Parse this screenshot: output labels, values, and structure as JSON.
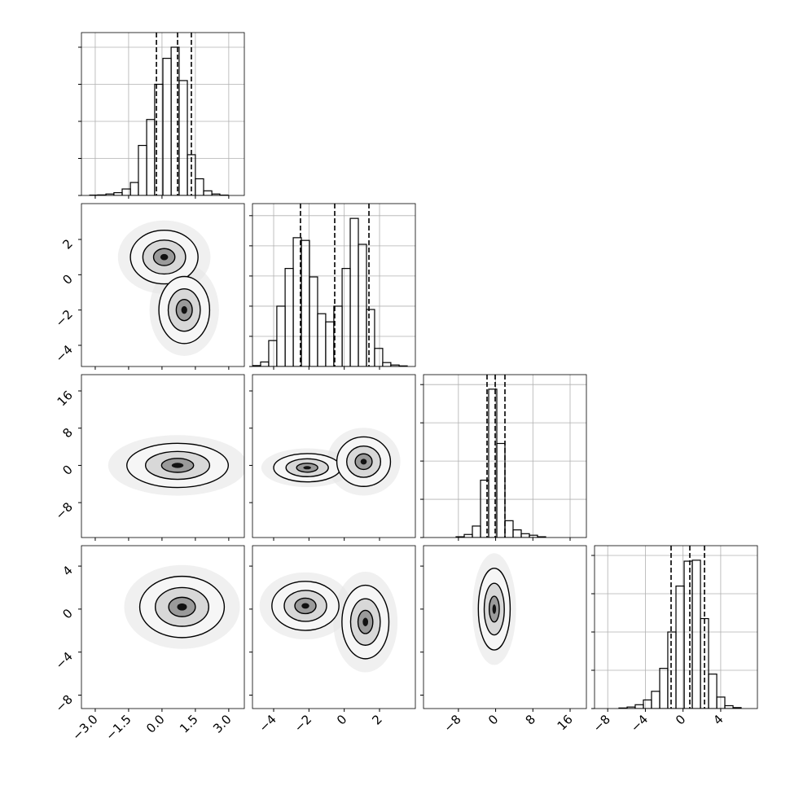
{
  "chart_data": [
    {
      "type": "histogram",
      "xlim": [
        -3.62,
        3.7
      ],
      "ylim": [
        0,
        879
      ],
      "xticks": [
        -3,
        -1.5,
        0,
        1.5,
        3
      ],
      "yticks": [
        0,
        200,
        400,
        600,
        800
      ],
      "grid": true,
      "bins": [
        -3.62,
        -3.25,
        -2.89,
        -2.52,
        -2.16,
        -1.79,
        -1.42,
        -1.06,
        -0.69,
        -0.33,
        0.04,
        0.41,
        0.77,
        1.14,
        1.5,
        1.87,
        2.24,
        2.6,
        2.97,
        3.33,
        3.7
      ],
      "counts": [
        0,
        2,
        3,
        8,
        15,
        35,
        70,
        270,
        410,
        600,
        740,
        800,
        620,
        220,
        90,
        25,
        8,
        2,
        0,
        0
      ],
      "quantiles": [
        -0.25,
        0.7,
        1.32
      ]
    },
    {
      "type": "contour",
      "xlim": [
        -3.62,
        3.7
      ],
      "ylim": [
        -5.2,
        4.03
      ],
      "xticks": [
        -3,
        -1.5,
        0,
        1.5,
        3
      ],
      "yticks": [
        {
          "value": -4,
          "label": "−4"
        },
        {
          "value": -2,
          "label": "−2"
        },
        0,
        2
      ],
      "modes": [
        {
          "x": 0.1,
          "y": 1.0,
          "sx": 0.8,
          "sy": 0.8
        },
        {
          "x": 1.0,
          "y": -2.0,
          "sx": 0.6,
          "sy": 1.0
        }
      ]
    },
    {
      "type": "histogram",
      "xlim": [
        -5.2,
        4.03
      ],
      "ylim": [
        0,
        540
      ],
      "xticks": [
        -4,
        -2,
        0,
        2
      ],
      "yticks": [
        0,
        100,
        200,
        300,
        400,
        500
      ],
      "grid": true,
      "bins": [
        -5.2,
        -4.74,
        -4.28,
        -3.82,
        -3.35,
        -2.89,
        -2.43,
        -1.97,
        -1.51,
        -1.05,
        -0.59,
        -0.12,
        0.34,
        0.8,
        1.26,
        1.72,
        2.18,
        2.64,
        3.11,
        3.57,
        4.03
      ],
      "counts": [
        3,
        15,
        86,
        200,
        325,
        427,
        418,
        297,
        175,
        148,
        200,
        325,
        491,
        405,
        189,
        60,
        13,
        5,
        2,
        0
      ],
      "quantiles": [
        -2.48,
        -0.54,
        1.4
      ]
    },
    {
      "type": "contour",
      "xlim": [
        -3.62,
        3.7
      ],
      "ylim": [
        -15.5,
        19.5
      ],
      "xticks": [
        -3,
        -1.5,
        0,
        1.5,
        3
      ],
      "yticks": [
        {
          "value": -8,
          "label": "−8"
        },
        0,
        8,
        16
      ],
      "modes": [
        {
          "x": 0.7,
          "y": 0,
          "sx": 1.2,
          "sy": 2.5
        }
      ]
    },
    {
      "type": "contour",
      "xlim": [
        -5.2,
        4.03
      ],
      "ylim": [
        -15.5,
        19.5
      ],
      "xticks": [
        -4,
        -2,
        0,
        2
      ],
      "yticks": [
        -8,
        0,
        8,
        16
      ],
      "modes": [
        {
          "x": -2.1,
          "y": -0.5,
          "sx": 1.0,
          "sy": 1.6
        },
        {
          "x": 1.1,
          "y": 0.8,
          "sx": 0.8,
          "sy": 2.8
        }
      ]
    },
    {
      "type": "histogram",
      "xlim": [
        -15.5,
        19.5
      ],
      "ylim": [
        0,
        2130
      ],
      "xticks": [
        -8,
        0,
        8,
        16
      ],
      "yticks": [
        0,
        500,
        1000,
        1500,
        2000
      ],
      "grid": true,
      "bins": [
        -15.5,
        -13.75,
        -12,
        -10.25,
        -8.5,
        -6.75,
        -5,
        -3.25,
        -1.5,
        0.25,
        2,
        3.75,
        5.5,
        7.25,
        9,
        10.75,
        12.5,
        14.25,
        16,
        17.75,
        19.5
      ],
      "counts": [
        0,
        0,
        0,
        0,
        10,
        40,
        150,
        750,
        1940,
        1230,
        220,
        100,
        50,
        30,
        10,
        0,
        0,
        0,
        0,
        0
      ],
      "quantiles": [
        -1.85,
        -0.1,
        2.0
      ]
    },
    {
      "type": "contour",
      "xlim": [
        -3.62,
        3.7
      ],
      "ylim": [
        -9.25,
        5.9
      ],
      "xticks": [
        {
          "value": -3,
          "label": "−3.0"
        },
        {
          "value": -1.5,
          "label": "−1.5"
        },
        {
          "value": 0,
          "label": "0.0"
        },
        {
          "value": 1.5,
          "label": "1.5"
        },
        {
          "value": 3,
          "label": "3.0"
        }
      ],
      "yticks": [
        {
          "value": -8,
          "label": "−8"
        },
        {
          "value": -4,
          "label": "−4"
        },
        0,
        4
      ],
      "modes": [
        {
          "x": 0.9,
          "y": 0.2,
          "sx": 1.0,
          "sy": 1.5
        }
      ]
    },
    {
      "type": "contour",
      "xlim": [
        -5.2,
        4.03
      ],
      "ylim": [
        -9.25,
        5.9
      ],
      "xticks": [
        {
          "value": -4,
          "label": "−4"
        },
        {
          "value": -2,
          "label": "−2"
        },
        0,
        2
      ],
      "yticks": [
        -8,
        -4,
        0,
        4
      ],
      "modes": [
        {
          "x": -2.2,
          "y": 0.3,
          "sx": 1.0,
          "sy": 1.2
        },
        {
          "x": 1.2,
          "y": -1.2,
          "sx": 0.7,
          "sy": 1.8
        }
      ]
    },
    {
      "type": "contour",
      "xlim": [
        -15.5,
        19.5
      ],
      "ylim": [
        -9.25,
        5.9
      ],
      "xticks": [
        {
          "value": -8,
          "label": "−8"
        },
        0,
        8,
        16
      ],
      "yticks": [
        -8,
        -4,
        0,
        4
      ],
      "modes": [
        {
          "x": -0.3,
          "y": 0,
          "sx": 1.8,
          "sy": 2.0
        }
      ]
    },
    {
      "type": "histogram",
      "xlim": [
        -9.4,
        7.9
      ],
      "ylim": [
        0,
        851
      ],
      "xticks": [
        {
          "value": -8,
          "label": "−8"
        },
        {
          "value": -4,
          "label": "−4"
        },
        0,
        4
      ],
      "yticks": [
        0,
        200,
        400,
        600,
        800
      ],
      "grid": true,
      "bins": [
        -9.4,
        -8.54,
        -7.67,
        -6.81,
        -5.94,
        -5.08,
        -4.21,
        -3.35,
        -2.48,
        -1.62,
        -0.75,
        0.12,
        0.98,
        1.85,
        2.71,
        3.58,
        4.44,
        5.31,
        6.17,
        7.04,
        7.9
      ],
      "counts": [
        0,
        0,
        0,
        3,
        8,
        20,
        45,
        90,
        210,
        400,
        640,
        770,
        775,
        470,
        180,
        60,
        15,
        5,
        0,
        0
      ],
      "quantiles": [
        -1.27,
        0.72,
        2.28
      ]
    }
  ]
}
